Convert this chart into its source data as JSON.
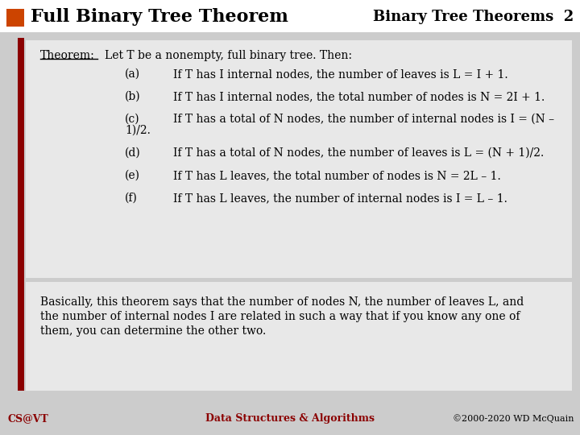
{
  "bg_color": "#cccccc",
  "content_bg": "#e8e8e8",
  "header_bg": "#ffffff",
  "dark_red": "#8B0000",
  "orange_sq": "#cc4400",
  "title_text": "Full Binary Tree Theorem",
  "top_right_text": "Binary Tree Theorems  2",
  "theorem_label": "Theorem:",
  "theorem_intro": "Let T be a nonempty, full binary tree. Then:",
  "items": [
    [
      "(a)",
      "If T has I internal nodes, the number of leaves is L = I + 1."
    ],
    [
      "(b)",
      "If T has I internal nodes, the total number of nodes is N = 2I + 1."
    ],
    [
      "(c)",
      "If T has a total of N nodes, the number of internal nodes is I = (N –",
      "1)/2."
    ],
    [
      "(d)",
      "If T has a total of N nodes, the number of leaves is L = (N + 1)/2.",
      ""
    ],
    [
      "(e)",
      "If T has L leaves, the total number of nodes is N = 2L – 1.",
      ""
    ],
    [
      "(f)",
      "If T has L leaves, the number of internal nodes is I = L – 1.",
      ""
    ]
  ],
  "bottom_line1": "Basically, this theorem says that the number of nodes N, the number of leaves L, and",
  "bottom_line2": "the number of internal nodes I are related in such a way that if you know any one of",
  "bottom_line3": "them, you can determine the other two.",
  "footer_left": "CS@VT",
  "footer_center": "Data Structures & Algorithms",
  "footer_right": "©2000-2020 WD McQuain",
  "footer_color": "#8B0000",
  "footer_center_color": "#8B0000"
}
